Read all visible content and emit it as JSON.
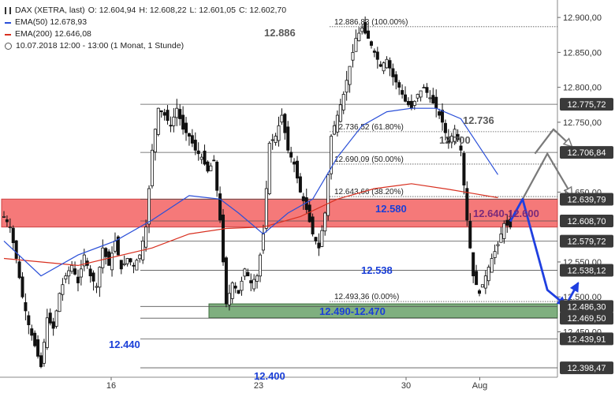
{
  "colors": {
    "ema50": "#2a4fd8",
    "ema200": "#d83020",
    "resistance_zone": "#f46a6a",
    "support_zone": "#5f9b5f",
    "arrow_blue": "#1f3fe0",
    "arrow_gray": "#7a7a7a",
    "label_blue": "#1a3fd8",
    "label_dark": "#5a5a5a",
    "label_purple": "#7a2a7a",
    "candle": "#111111"
  },
  "legend": {
    "instrument": "DAX (XETRA, last)",
    "open": "O: 12.604,94",
    "high": "H: 12.608,22",
    "low": "L: 12.601,05",
    "close": "C: 12.602,70",
    "ema50": "EMA(50)  12.678,93",
    "ema200": "EMA(200)  12.646,08",
    "timeframe": "10.07.2018 12:00 - 13:00   (1 Monat, 1 Stunde)"
  },
  "chart_data": {
    "type": "candlestick",
    "title": "DAX (XETRA, last)",
    "ylim": [
      12385,
      12925
    ],
    "y_ticks": [
      "12.900,00",
      "12.850,00",
      "12.800,00",
      "12.750,00",
      "12.650,00",
      "12.550,00",
      "12.500,00",
      "12.450,00"
    ],
    "x_ticks": [
      "16",
      "23",
      "30",
      "Aug"
    ],
    "x_tick_pos": [
      16,
      38,
      60,
      71
    ],
    "n_bars": 90,
    "price_path": [
      [
        0,
        12615
      ],
      [
        1,
        12600
      ],
      [
        2,
        12555
      ],
      [
        3,
        12500
      ],
      [
        4,
        12460
      ],
      [
        5,
        12430
      ],
      [
        6,
        12400
      ],
      [
        7,
        12470
      ],
      [
        8,
        12455
      ],
      [
        9,
        12505
      ],
      [
        10,
        12530
      ],
      [
        11,
        12545
      ],
      [
        12,
        12520
      ],
      [
        13,
        12560
      ],
      [
        14,
        12530
      ],
      [
        15,
        12515
      ],
      [
        16,
        12570
      ],
      [
        17,
        12545
      ],
      [
        18,
        12580
      ],
      [
        19,
        12540
      ],
      [
        20,
        12555
      ],
      [
        21,
        12545
      ],
      [
        22,
        12560
      ],
      [
        23,
        12600
      ],
      [
        24,
        12710
      ],
      [
        25,
        12770
      ],
      [
        26,
        12760
      ],
      [
        27,
        12745
      ],
      [
        28,
        12770
      ],
      [
        29,
        12740
      ],
      [
        30,
        12730
      ],
      [
        31,
        12710
      ],
      [
        32,
        12700
      ],
      [
        33,
        12680
      ],
      [
        34,
        12695
      ],
      [
        35,
        12610
      ],
      [
        36,
        12490
      ],
      [
        37,
        12520
      ],
      [
        38,
        12505
      ],
      [
        39,
        12540
      ],
      [
        40,
        12520
      ],
      [
        41,
        12530
      ],
      [
        42,
        12590
      ],
      [
        43,
        12720
      ],
      [
        44,
        12730
      ],
      [
        45,
        12760
      ],
      [
        46,
        12710
      ],
      [
        47,
        12690
      ],
      [
        48,
        12650
      ],
      [
        49,
        12625
      ],
      [
        50,
        12590
      ],
      [
        51,
        12570
      ],
      [
        52,
        12620
      ],
      [
        53,
        12730
      ],
      [
        54,
        12760
      ],
      [
        55,
        12790
      ],
      [
        56,
        12830
      ],
      [
        57,
        12870
      ],
      [
        58,
        12885
      ],
      [
        59,
        12870
      ],
      [
        60,
        12850
      ],
      [
        61,
        12830
      ],
      [
        62,
        12840
      ],
      [
        63,
        12815
      ],
      [
        64,
        12800
      ],
      [
        65,
        12780
      ],
      [
        66,
        12770
      ],
      [
        67,
        12790
      ],
      [
        68,
        12800
      ],
      [
        69,
        12785
      ],
      [
        70,
        12770
      ],
      [
        71,
        12750
      ],
      [
        72,
        12720
      ],
      [
        73,
        12740
      ],
      [
        74,
        12710
      ],
      [
        75,
        12610
      ],
      [
        76,
        12530
      ],
      [
        77,
        12505
      ],
      [
        78,
        12530
      ],
      [
        79,
        12555
      ],
      [
        80,
        12575
      ],
      [
        81,
        12605
      ],
      [
        82,
        12600
      ]
    ],
    "ema50": [
      [
        0,
        12580
      ],
      [
        6,
        12530
      ],
      [
        12,
        12560
      ],
      [
        18,
        12580
      ],
      [
        24,
        12610
      ],
      [
        30,
        12645
      ],
      [
        35,
        12640
      ],
      [
        38,
        12620
      ],
      [
        42,
        12590
      ],
      [
        46,
        12620
      ],
      [
        50,
        12640
      ],
      [
        54,
        12700
      ],
      [
        58,
        12745
      ],
      [
        62,
        12765
      ],
      [
        66,
        12770
      ],
      [
        70,
        12770
      ],
      [
        74,
        12755
      ],
      [
        77,
        12715
      ],
      [
        80,
        12675
      ]
    ],
    "ema200": [
      [
        0,
        12555
      ],
      [
        12,
        12545
      ],
      [
        24,
        12570
      ],
      [
        30,
        12590
      ],
      [
        36,
        12598
      ],
      [
        42,
        12600
      ],
      [
        48,
        12615
      ],
      [
        54,
        12640
      ],
      [
        60,
        12655
      ],
      [
        66,
        12662
      ],
      [
        72,
        12654
      ],
      [
        76,
        12648
      ],
      [
        80,
        12642
      ]
    ],
    "horizontal_lines": [
      {
        "value": 12886.83,
        "label": "12.886,83 (100.00%)",
        "badge": ""
      },
      {
        "value": 12775.72,
        "label": "",
        "badge": "12.775,72"
      },
      {
        "value": 12736.52,
        "label": "12.736,52 (61.80%)",
        "badge": ""
      },
      {
        "value": 12706.84,
        "label": "",
        "badge": "12.706,84"
      },
      {
        "value": 12690.09,
        "label": "12.690,09 (50.00%)",
        "badge": ""
      },
      {
        "value": 12643.66,
        "label": "12.643,66 (38.20%)",
        "badge": ""
      },
      {
        "value": 12639.79,
        "label": "",
        "badge": "12.639,79"
      },
      {
        "value": 12608.7,
        "label": "",
        "badge": "12.608,70"
      },
      {
        "value": 12579.72,
        "label": "",
        "badge": "12.579,72"
      },
      {
        "value": 12538.12,
        "label": "",
        "badge": "12.538,12"
      },
      {
        "value": 12493.36,
        "label": "12.493,36 (0.00%)",
        "badge": ""
      },
      {
        "value": 12486.3,
        "label": "",
        "badge": "12.486,30"
      },
      {
        "value": 12469.5,
        "label": "",
        "badge": "12.469,50"
      },
      {
        "value": 12439.91,
        "label": "",
        "badge": "12.439,91"
      },
      {
        "value": 12398.47,
        "label": "",
        "badge": "12.398,47"
      }
    ],
    "zones": [
      {
        "name": "resistance",
        "from": 12640,
        "to": 12600,
        "label": "12.640-12.600"
      },
      {
        "name": "support",
        "from": 12490,
        "to": 12470,
        "label": "12.490-12.470"
      }
    ],
    "annotations": [
      {
        "text": "12.886",
        "bar": 57,
        "value": 12886
      },
      {
        "text": "12.736",
        "bar": 82,
        "value": 12736
      },
      {
        "text": "12.700",
        "bar": 79,
        "value": 12700
      },
      {
        "text": "12.580",
        "bar": 67,
        "value": 12580
      },
      {
        "text": "12.538",
        "bar": 65,
        "value": 12538
      },
      {
        "text": "12.440",
        "bar": 17,
        "value": 12440
      },
      {
        "text": "12.400",
        "bar": 44,
        "value": 12400
      }
    ],
    "forecast_blue": [
      [
        82,
        12608
      ],
      [
        84,
        12640
      ],
      [
        88,
        12510
      ],
      [
        91,
        12488
      ],
      [
        93,
        12520
      ]
    ],
    "forecast_gray": [
      [
        84,
        12640
      ],
      [
        88,
        12705
      ],
      [
        92,
        12645
      ]
    ],
    "forecast_gray_upper": [
      [
        86,
        12705
      ],
      [
        89,
        12740
      ],
      [
        92,
        12715
      ]
    ]
  }
}
